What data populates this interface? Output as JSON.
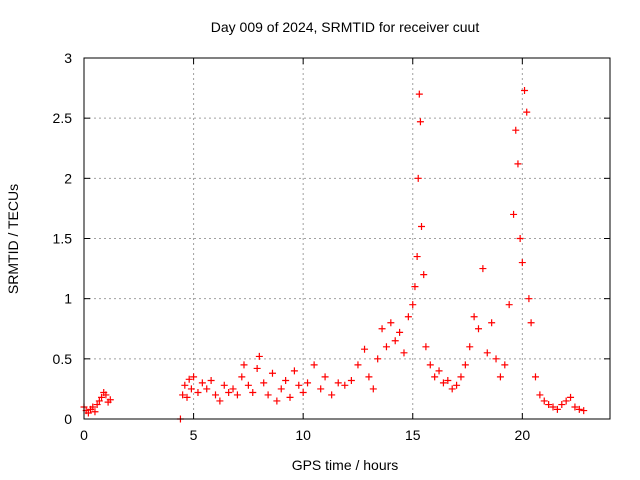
{
  "chart_data": {
    "type": "scatter",
    "title": "Day 009 of 2024, SRMTID for receiver cuut",
    "xlabel": "GPS time / hours",
    "ylabel": "SRMTID / TECUs",
    "xlim": [
      0,
      24
    ],
    "ylim": [
      0,
      3
    ],
    "xticks": [
      0,
      5,
      10,
      15,
      20
    ],
    "xtick_labels": [
      "0",
      "5",
      "10",
      "15",
      "20"
    ],
    "yticks": [
      0,
      0.5,
      1,
      1.5,
      2,
      2.5,
      3
    ],
    "ytick_labels": [
      "0",
      "0.5",
      "1",
      "1.5",
      "2",
      "2.5",
      "3"
    ],
    "grid": true,
    "marker": "+",
    "color": "#ff0000",
    "series": [
      {
        "name": "SRMTID",
        "points": [
          [
            0.0,
            0.1
          ],
          [
            0.1,
            0.07
          ],
          [
            0.2,
            0.05
          ],
          [
            0.3,
            0.08
          ],
          [
            0.4,
            0.1
          ],
          [
            0.5,
            0.06
          ],
          [
            0.6,
            0.12
          ],
          [
            0.7,
            0.15
          ],
          [
            0.8,
            0.18
          ],
          [
            0.9,
            0.22
          ],
          [
            1.0,
            0.2
          ],
          [
            1.1,
            0.14
          ],
          [
            1.2,
            0.16
          ],
          [
            4.4,
            0.0
          ],
          [
            4.5,
            0.2
          ],
          [
            4.6,
            0.28
          ],
          [
            4.7,
            0.18
          ],
          [
            4.8,
            0.33
          ],
          [
            4.9,
            0.25
          ],
          [
            5.0,
            0.35
          ],
          [
            5.2,
            0.22
          ],
          [
            5.4,
            0.3
          ],
          [
            5.6,
            0.25
          ],
          [
            5.8,
            0.32
          ],
          [
            6.0,
            0.2
          ],
          [
            6.2,
            0.15
          ],
          [
            6.4,
            0.28
          ],
          [
            6.6,
            0.22
          ],
          [
            6.8,
            0.25
          ],
          [
            7.0,
            0.2
          ],
          [
            7.2,
            0.35
          ],
          [
            7.3,
            0.45
          ],
          [
            7.5,
            0.28
          ],
          [
            7.7,
            0.22
          ],
          [
            7.9,
            0.42
          ],
          [
            8.0,
            0.52
          ],
          [
            8.2,
            0.3
          ],
          [
            8.4,
            0.2
          ],
          [
            8.6,
            0.38
          ],
          [
            8.8,
            0.15
          ],
          [
            9.0,
            0.25
          ],
          [
            9.2,
            0.32
          ],
          [
            9.4,
            0.18
          ],
          [
            9.6,
            0.4
          ],
          [
            9.8,
            0.28
          ],
          [
            10.0,
            0.22
          ],
          [
            10.2,
            0.3
          ],
          [
            10.5,
            0.45
          ],
          [
            10.8,
            0.25
          ],
          [
            11.0,
            0.35
          ],
          [
            11.3,
            0.2
          ],
          [
            11.6,
            0.3
          ],
          [
            11.9,
            0.28
          ],
          [
            12.2,
            0.32
          ],
          [
            12.5,
            0.45
          ],
          [
            12.8,
            0.58
          ],
          [
            13.0,
            0.35
          ],
          [
            13.2,
            0.25
          ],
          [
            13.4,
            0.5
          ],
          [
            13.6,
            0.75
          ],
          [
            13.8,
            0.6
          ],
          [
            14.0,
            0.8
          ],
          [
            14.2,
            0.65
          ],
          [
            14.4,
            0.72
          ],
          [
            14.6,
            0.55
          ],
          [
            14.8,
            0.85
          ],
          [
            15.0,
            0.95
          ],
          [
            15.1,
            1.1
          ],
          [
            15.2,
            1.35
          ],
          [
            15.25,
            2.0
          ],
          [
            15.3,
            2.7
          ],
          [
            15.35,
            2.47
          ],
          [
            15.4,
            1.6
          ],
          [
            15.5,
            1.2
          ],
          [
            15.6,
            0.6
          ],
          [
            15.8,
            0.45
          ],
          [
            16.0,
            0.35
          ],
          [
            16.2,
            0.4
          ],
          [
            16.4,
            0.3
          ],
          [
            16.6,
            0.32
          ],
          [
            16.8,
            0.25
          ],
          [
            17.0,
            0.28
          ],
          [
            17.2,
            0.35
          ],
          [
            17.4,
            0.45
          ],
          [
            17.6,
            0.6
          ],
          [
            17.8,
            0.85
          ],
          [
            18.0,
            0.75
          ],
          [
            18.2,
            1.25
          ],
          [
            18.4,
            0.55
          ],
          [
            18.6,
            0.8
          ],
          [
            18.8,
            0.5
          ],
          [
            19.0,
            0.35
          ],
          [
            19.2,
            0.45
          ],
          [
            19.4,
            0.95
          ],
          [
            19.6,
            1.7
          ],
          [
            19.7,
            2.4
          ],
          [
            19.8,
            2.12
          ],
          [
            19.9,
            1.5
          ],
          [
            20.0,
            1.3
          ],
          [
            20.1,
            2.73
          ],
          [
            20.2,
            2.55
          ],
          [
            20.3,
            1.0
          ],
          [
            20.4,
            0.8
          ],
          [
            20.6,
            0.35
          ],
          [
            20.8,
            0.2
          ],
          [
            21.0,
            0.15
          ],
          [
            21.2,
            0.12
          ],
          [
            21.4,
            0.1
          ],
          [
            21.6,
            0.08
          ],
          [
            21.8,
            0.12
          ],
          [
            22.0,
            0.15
          ],
          [
            22.2,
            0.18
          ],
          [
            22.4,
            0.1
          ],
          [
            22.6,
            0.08
          ],
          [
            22.8,
            0.07
          ]
        ]
      }
    ]
  }
}
